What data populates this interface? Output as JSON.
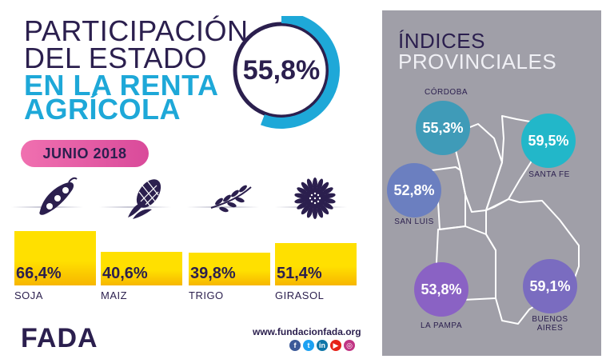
{
  "title": {
    "line1": "PARTICIPACIÓN",
    "line2": "DEL ESTADO",
    "line3": "EN LA RENTA",
    "line4": "AGRÍCOLA"
  },
  "main_value": "55,8%",
  "main_fraction": 0.558,
  "date_label": "JUNIO 2018",
  "crops": [
    {
      "label": "SOJA",
      "value": "66,4%",
      "percent": 66.4,
      "icon": "soy-pod-icon"
    },
    {
      "label": "MAIZ",
      "value": "40,6%",
      "percent": 40.6,
      "icon": "corn-icon"
    },
    {
      "label": "TRIGO",
      "value": "39,8%",
      "percent": 39.8,
      "icon": "wheat-icon"
    },
    {
      "label": "GIRASOL",
      "value": "51,4%",
      "percent": 51.4,
      "icon": "sunflower-icon"
    }
  ],
  "footer": {
    "logo_text": "FADA",
    "url": "www.fundacionfada.org",
    "socials": [
      {
        "icon": "facebook-icon",
        "glyph": "f",
        "color": "#3b5998"
      },
      {
        "icon": "twitter-icon",
        "glyph": "t",
        "color": "#1da1f2"
      },
      {
        "icon": "linkedin-icon",
        "glyph": "in",
        "color": "#0e76a8"
      },
      {
        "icon": "youtube-icon",
        "glyph": "▶",
        "color": "#e62117"
      },
      {
        "icon": "instagram-icon",
        "glyph": "◎",
        "color": "#c13584"
      }
    ]
  },
  "panel": {
    "title_line1": "ÍNDICES",
    "title_line2": "PROVINCIALES",
    "provinces": [
      {
        "name": "CÓRDOBA",
        "value": "55,3%",
        "color": "#3f9bb8"
      },
      {
        "name": "SANTA FE",
        "value": "59,5%",
        "color": "#22b7c9"
      },
      {
        "name": "SAN LUIS",
        "value": "52,8%",
        "color": "#6b7fc0"
      },
      {
        "name": "LA PAMPA",
        "value": "53,8%",
        "color": "#8a62c4"
      },
      {
        "name": "BUENOS AIRES",
        "name_line1": "BUENOS",
        "name_line2": "AIRES",
        "value": "59,1%",
        "color": "#7a6cc0"
      }
    ]
  },
  "colors": {
    "navy": "#2b1f4e",
    "cyan": "#1ea8d8",
    "yellow": "#ffe000",
    "pink": "#e05aa5",
    "panel_gray": "#a09fa8"
  }
}
